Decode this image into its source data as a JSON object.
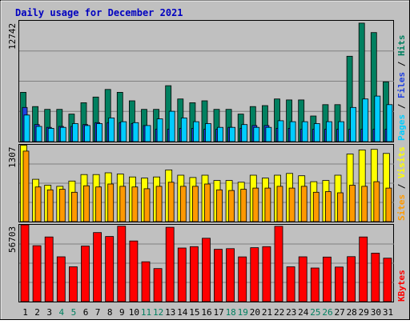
{
  "chart_data": {
    "type": "bar",
    "title": "Daily usage for December 2021",
    "categories": [
      "1",
      "2",
      "3",
      "4",
      "5",
      "6",
      "7",
      "8",
      "9",
      "10",
      "11",
      "12",
      "13",
      "14",
      "15",
      "16",
      "17",
      "18",
      "19",
      "20",
      "21",
      "22",
      "23",
      "24",
      "25",
      "26",
      "27",
      "28",
      "29",
      "30",
      "31"
    ],
    "weekend_days": [
      "4",
      "5",
      "11",
      "12",
      "18",
      "19",
      "25",
      "26"
    ],
    "panels": [
      {
        "name": "hits-files-pages",
        "ymax_label": "12742",
        "ylim": [
          0,
          12742
        ],
        "legend": [
          "Pages",
          "Files",
          "Hits"
        ],
        "series": [
          {
            "name": "Hits",
            "color": "#008060",
            "values": [
              5200,
              3700,
              3400,
              3400,
              2900,
              4100,
              4700,
              5500,
              5200,
              4300,
              3400,
              3400,
              5900,
              4500,
              4100,
              4300,
              3400,
              3400,
              2900,
              3700,
              3800,
              4500,
              4400,
              4400,
              2700,
              3900,
              3900,
              9000,
              12500,
              11500,
              6300
            ]
          },
          {
            "name": "Files",
            "color": "#00ccff",
            "values": [
              2800,
              1600,
              1400,
              1500,
              1900,
              1700,
              1900,
              2500,
              2100,
              2000,
              1700,
              2400,
              3200,
              2500,
              2100,
              1900,
              1500,
              1500,
              1800,
              1500,
              1500,
              2200,
              2100,
              2100,
              1900,
              2100,
              2100,
              3600,
              4500,
              4800,
              3900
            ]
          },
          {
            "name": "Pages",
            "color": "#2040e0",
            "values": [
              3600,
              1800,
              1500,
              1600,
              1600,
              1800,
              2000,
              2000,
              2000,
              1900,
              1700,
              1300,
              1300,
              1400,
              1400,
              1300,
              1300,
              1500,
              1400,
              1700,
              1700,
              1400,
              1400,
              1300,
              1300,
              1300,
              1300,
              1300,
              1300,
              1300,
              1300
            ]
          }
        ]
      },
      {
        "name": "visits-sites",
        "ymax_label": "1307",
        "ylim": [
          0,
          1307
        ],
        "legend": [
          "Sites",
          "Visits"
        ],
        "series": [
          {
            "name": "Visits",
            "color": "#ffff00",
            "values": [
              1300,
              720,
              620,
              600,
              690,
              800,
              800,
              830,
              810,
              760,
              740,
              760,
              880,
              790,
              750,
              790,
              700,
              700,
              670,
              790,
              740,
              790,
              820,
              780,
              680,
              700,
              790,
              1150,
              1220,
              1230,
              1160
            ]
          },
          {
            "name": "Sites",
            "color": "#ff9900",
            "values": [
              1200,
              590,
              540,
              550,
              500,
              610,
              590,
              640,
              600,
              590,
              560,
              600,
              670,
              600,
              600,
              640,
              540,
              530,
              550,
              570,
              570,
              600,
              570,
              600,
              500,
              510,
              490,
              620,
              600,
              680,
              570
            ]
          }
        ]
      },
      {
        "name": "kbytes",
        "ymax_label": "56703",
        "ylim": [
          0,
          56703
        ],
        "legend": [
          "KBytes"
        ],
        "series": [
          {
            "name": "KBytes",
            "color": "#ff0000",
            "values": [
              56700,
              41300,
              47700,
              33100,
              25700,
              41000,
              51000,
              48100,
              55700,
              44800,
              29400,
              24400,
              54900,
              39600,
              40600,
              46800,
              38600,
              39100,
              33000,
              39800,
              40600,
              55600,
              25700,
              33100,
              24800,
              32900,
              25500,
              33200,
              47700,
              35800,
              32100
            ]
          }
        ]
      }
    ]
  }
}
